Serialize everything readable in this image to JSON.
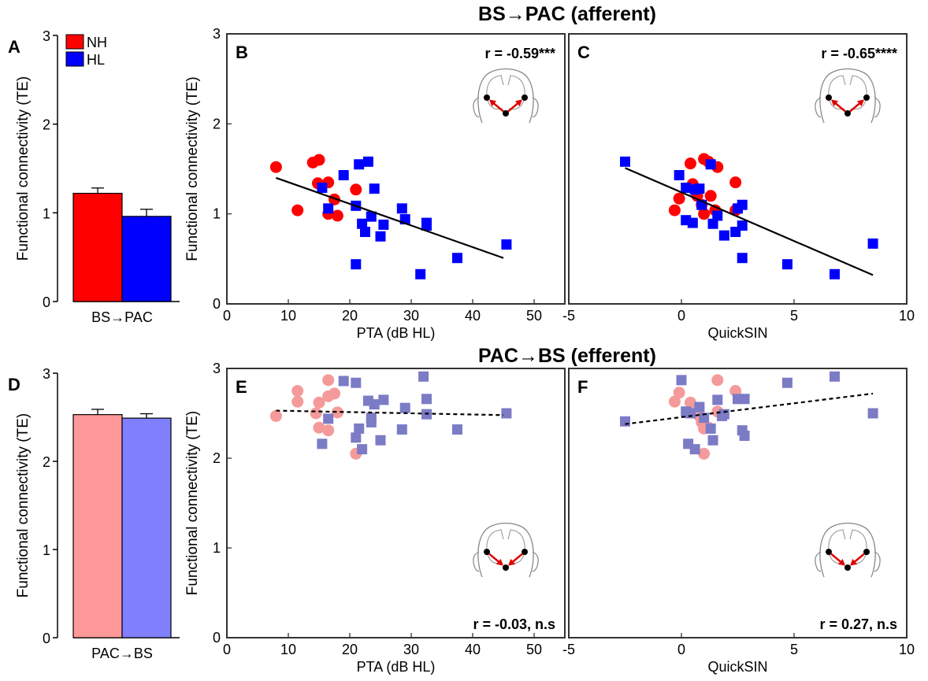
{
  "section_titles": {
    "afferent": "BS→PAC (afferent)",
    "efferent": "PAC→BS (efferent)"
  },
  "legend": [
    {
      "name": "NH",
      "color": "#ff0000"
    },
    {
      "name": "HL",
      "color": "#0000ff"
    }
  ],
  "chart_data": [
    {
      "id": "A",
      "type": "bar",
      "panel_letter": "A",
      "categories": [
        "BS→PAC"
      ],
      "series": [
        {
          "name": "NH",
          "values": [
            1.22
          ],
          "error": [
            0.06
          ],
          "color": "#ff0000"
        },
        {
          "name": "HL",
          "values": [
            0.96
          ],
          "error": [
            0.08
          ],
          "color": "#0000ff"
        }
      ],
      "ylabel": "Functional connectivity (TE)",
      "ylim": [
        0,
        3
      ],
      "yticks": [
        0,
        1,
        2,
        3
      ]
    },
    {
      "id": "B",
      "type": "scatter",
      "panel_letter": "B",
      "xlabel": "PTA (dB HL)",
      "ylabel": "Functional connectivity (TE)",
      "xlim": [
        0,
        55
      ],
      "ylim": [
        0,
        3
      ],
      "xticks": [
        0,
        10,
        20,
        30,
        40,
        50
      ],
      "yticks": [
        0,
        1,
        2,
        3
      ],
      "annotation": "r = -0.59***",
      "fit_line": {
        "style": "solid",
        "x": [
          8,
          45
        ],
        "y": [
          1.4,
          0.51
        ]
      },
      "series": [
        {
          "name": "NH",
          "marker": "circle",
          "color": "#ff0000",
          "x": [
            8,
            11.5,
            14,
            15,
            14.8,
            16.5,
            17.5,
            16.5,
            18,
            21
          ],
          "y": [
            1.52,
            1.04,
            1.57,
            1.6,
            1.34,
            1.35,
            1.16,
            1.0,
            0.98,
            1.27
          ]
        },
        {
          "name": "HL",
          "marker": "square",
          "color": "#0000ff",
          "x": [
            15.5,
            16.5,
            19,
            21.5,
            23,
            24,
            21,
            23.5,
            22,
            22.5,
            25,
            25.5,
            28.5,
            29,
            32.5,
            32.5,
            37.5,
            21,
            31.5,
            45.5
          ],
          "y": [
            1.29,
            1.06,
            1.43,
            1.55,
            1.58,
            1.28,
            1.09,
            0.97,
            0.89,
            0.8,
            0.75,
            0.88,
            1.06,
            0.94,
            0.9,
            0.87,
            0.51,
            0.44,
            0.33,
            0.66
          ]
        }
      ]
    },
    {
      "id": "C",
      "type": "scatter",
      "panel_letter": "C",
      "xlabel": "QuickSIN",
      "ylabel": "",
      "xlim": [
        -5,
        10
      ],
      "ylim": [
        0,
        3
      ],
      "xticks": [
        -5,
        0,
        5,
        10
      ],
      "yticks": [],
      "annotation": "r = -0.65****",
      "fit_line": {
        "style": "solid",
        "x": [
          -2.5,
          8.5
        ],
        "y": [
          1.51,
          0.32
        ]
      },
      "series": [
        {
          "name": "NH",
          "marker": "circle",
          "color": "#ff0000",
          "x": [
            -0.3,
            -0.1,
            0.4,
            0.7,
            1.0,
            1.2,
            1.6,
            1.5,
            1.0,
            0.5,
            0.9,
            1.3,
            2.4,
            2.4
          ],
          "y": [
            1.04,
            1.17,
            1.56,
            1.2,
            1.61,
            1.58,
            1.52,
            1.04,
            1.0,
            1.33,
            1.1,
            1.2,
            1.35,
            1.04
          ]
        },
        {
          "name": "HL",
          "marker": "square",
          "color": "#0000ff",
          "x": [
            -2.5,
            -0.1,
            0.2,
            0.6,
            0.8,
            0.9,
            1.3,
            1.6,
            2.5,
            2.7,
            2.7,
            0.2,
            0.5,
            1.4,
            1.9,
            2.4,
            2.7,
            4.7,
            6.8,
            8.5
          ],
          "y": [
            1.58,
            1.43,
            1.29,
            1.27,
            1.28,
            1.1,
            1.55,
            0.98,
            1.06,
            1.1,
            0.87,
            0.93,
            0.9,
            0.89,
            0.76,
            0.8,
            0.51,
            0.44,
            0.33,
            0.67
          ]
        }
      ]
    },
    {
      "id": "D",
      "type": "bar",
      "panel_letter": "D",
      "categories": [
        "PAC→BS"
      ],
      "series": [
        {
          "name": "NH",
          "values": [
            2.53
          ],
          "error": [
            0.06
          ],
          "color": "#ff9999"
        },
        {
          "name": "HL",
          "values": [
            2.49
          ],
          "error": [
            0.05
          ],
          "color": "#8080ff"
        }
      ],
      "ylabel": "Functional connectivity (TE)",
      "ylim": [
        0,
        3
      ],
      "yticks": [
        0,
        1,
        2,
        3
      ]
    },
    {
      "id": "E",
      "type": "scatter",
      "panel_letter": "E",
      "xlabel": "PTA (dB HL)",
      "ylabel": "Functional connectivity (TE)",
      "xlim": [
        0,
        55
      ],
      "ylim": [
        0,
        3
      ],
      "xticks": [
        0,
        10,
        20,
        30,
        40,
        50
      ],
      "yticks": [
        0,
        1,
        2,
        3
      ],
      "annotation": "r = -0.03, n.s",
      "fit_line": {
        "style": "dashed",
        "x": [
          8,
          45
        ],
        "y": [
          2.53,
          2.48
        ]
      },
      "series": [
        {
          "name": "NH",
          "marker": "circle",
          "color": "#f49a9a",
          "x": [
            8,
            11.5,
            11.5,
            14.5,
            15,
            15,
            16.5,
            16.5,
            17.5,
            18,
            16.5,
            21
          ],
          "y": [
            2.47,
            2.75,
            2.63,
            2.5,
            2.62,
            2.34,
            2.87,
            2.69,
            2.72,
            2.51,
            2.31,
            2.05
          ]
        },
        {
          "name": "HL",
          "marker": "square",
          "color": "#7b7bc6",
          "x": [
            15.5,
            16.5,
            19,
            21,
            21.5,
            22,
            23,
            23.5,
            23.5,
            24,
            25.5,
            25,
            28.5,
            29,
            32,
            32.5,
            32.5,
            37.5,
            21,
            45.5
          ],
          "y": [
            2.16,
            2.44,
            2.86,
            2.84,
            2.33,
            2.1,
            2.64,
            2.45,
            2.4,
            2.6,
            2.65,
            2.2,
            2.32,
            2.56,
            2.91,
            2.66,
            2.49,
            2.32,
            2.23,
            2.5
          ]
        }
      ]
    },
    {
      "id": "F",
      "type": "scatter",
      "panel_letter": "F",
      "xlabel": "QuickSIN",
      "ylabel": "",
      "xlim": [
        -5,
        10
      ],
      "ylim": [
        0,
        3
      ],
      "xticks": [
        -5,
        0,
        5,
        10
      ],
      "yticks": [],
      "annotation": "r = 0.27, n.s",
      "fit_line": {
        "style": "dashed",
        "x": [
          -2.5,
          8.5
        ],
        "y": [
          2.38,
          2.72
        ]
      },
      "series": [
        {
          "name": "NH",
          "marker": "circle",
          "color": "#f49a9a",
          "x": [
            -0.3,
            -0.1,
            0.4,
            0.5,
            0.8,
            1.0,
            1.0,
            1.6,
            1.6,
            2.4,
            1.2,
            0.9
          ],
          "y": [
            2.63,
            2.73,
            2.62,
            2.55,
            2.47,
            2.33,
            2.05,
            2.87,
            2.52,
            2.75,
            2.34,
            2.4
          ]
        },
        {
          "name": "HL",
          "marker": "square",
          "color": "#7b7bc6",
          "x": [
            -2.5,
            0.0,
            0.2,
            0.3,
            0.6,
            0.8,
            1.0,
            1.3,
            1.6,
            1.8,
            1.9,
            2.5,
            2.7,
            2.8,
            2.8,
            4.7,
            6.8,
            8.5,
            0.4,
            1.4
          ],
          "y": [
            2.41,
            2.87,
            2.52,
            2.16,
            2.1,
            2.57,
            2.45,
            2.33,
            2.65,
            2.47,
            2.49,
            2.66,
            2.31,
            2.25,
            2.66,
            2.84,
            2.91,
            2.5,
            2.5,
            2.2
          ]
        }
      ]
    }
  ]
}
